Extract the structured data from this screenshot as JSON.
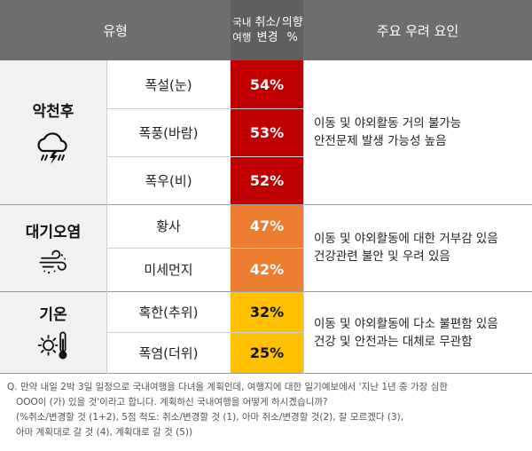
{
  "header": {
    "type_label": "유형",
    "pct_line1": "국내여행",
    "pct_line2": "취소/변경",
    "pct_line3": "의향 %",
    "reason_label": "주요 우려 요인"
  },
  "groups": [
    {
      "label": "악천후",
      "icon": "storm-cloud-icon",
      "items": [
        {
          "name": "폭설(눈)",
          "pct": "54%",
          "color": "#c00000"
        },
        {
          "name": "폭풍(바람)",
          "pct": "53%",
          "color": "#c00000"
        },
        {
          "name": "폭우(비)",
          "pct": "52%",
          "color": "#c00000"
        }
      ],
      "reason": [
        "이동 및 야외활동 거의 불가능",
        "안전문제 발생 가능성 높음"
      ]
    },
    {
      "label": "대기오염",
      "icon": "wind-dust-icon",
      "items": [
        {
          "name": "황사",
          "pct": "47%",
          "color": "#ed7d31"
        },
        {
          "name": "미세먼지",
          "pct": "42%",
          "color": "#ed7d31"
        }
      ],
      "reason": [
        "이동 및 야외활동에 대한 거부감 있음",
        "건강관련 불안 및 우려 있음"
      ]
    },
    {
      "label": "기온",
      "icon": "sun-thermometer-icon",
      "items": [
        {
          "name": "혹한(추위)",
          "pct": "32%",
          "color": "#ffc000"
        },
        {
          "name": "폭염(더위)",
          "pct": "25%",
          "color": "#ffc000"
        }
      ],
      "reason": [
        "이동 및 야외활동에 다소 불편함 있음",
        "건강 및 안전과는 대체로 무관함"
      ]
    }
  ],
  "footnote": [
    "Q. 만약 내일 2박 3일 일정으로 국내여행을 다녀올 계획인데, 여행지에 대한 일기예보에서 '지난 1년 중 가장 심한",
    "OOO이 (가) 있을 것'이라고 합니다. 계획하신 국내여행을 어떻게 하시겠습니까?",
    "(%취소/변경할 것 (1+2), 5점 척도: 취소/변경할 것 (1), 아마 취소/변경할 것(2), 잘 모르겠다 (3),",
    "아마 계획대로 갈 것 (4), 계획대로 갈 것 (5))"
  ]
}
